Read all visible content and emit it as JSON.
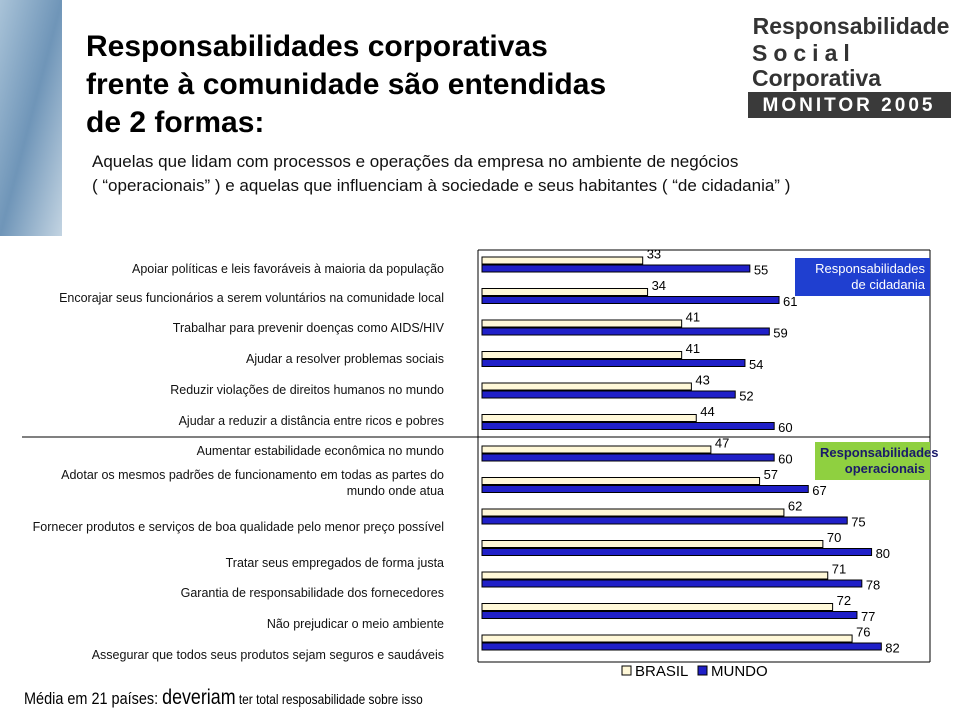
{
  "slide": {
    "title": [
      "Responsabilidades corporativas",
      "frente à comunidade são entendidas",
      "de 2 formas:"
    ],
    "subtitle": [
      "Aquelas que lidam com processos e operações da empresa no ambiente de negócios",
      "( “operacionais” ) e aquelas que influenciam à sociedade e seus habitantes ( “de cidadania” )"
    ],
    "logo": [
      "Responsabilidade",
      "Social",
      "Corporativa",
      "MONITOR 2005"
    ],
    "footnote": [
      "Média em 21 países: ",
      "deveriam",
      " ter total resposabilidade sobre isso"
    ]
  },
  "chart_data": {
    "type": "hbar",
    "categories": [
      "Apoiar políticas e leis favoráveis à maioria da população",
      "Encorajar seus funcionários a serem voluntários na comunidade local",
      "Trabalhar para prevenir doenças como AIDS/HIV",
      "Ajudar a resolver problemas sociais",
      "Reduzir violações de direitos humanos no mundo",
      "Ajudar a reduzir a distância entre ricos e pobres",
      "Aumentar estabilidade econômica no mundo",
      "Adotar os mesmos padrões de funcionamento em todas as partes do mundo onde atua",
      "Fornecer produtos e serviços de boa qualidade pelo menor preço possível",
      "Tratar seus empregados de forma justa",
      "Garantia de responsabilidade dos fornecedores",
      "Não prejudicar o meio ambiente",
      "Assegurar que todos seus produtos sejam seguros e saudáveis"
    ],
    "series": [
      {
        "name": "BRASIL",
        "color": "#fff8d8",
        "values": [
          33,
          34,
          41,
          41,
          43,
          44,
          47,
          57,
          62,
          70,
          71,
          72,
          76
        ]
      },
      {
        "name": "MUNDO",
        "color": "#2020c8",
        "values": [
          55,
          61,
          59,
          54,
          52,
          60,
          60,
          67,
          75,
          80,
          78,
          77,
          82
        ]
      }
    ],
    "groups": [
      {
        "label": "Responsabilidades de cidadania",
        "color": "#1f3fd0"
      },
      {
        "label": "Responsabilidades operacionais",
        "color": "#8fd040"
      }
    ],
    "xlim": [
      0,
      92
    ]
  }
}
